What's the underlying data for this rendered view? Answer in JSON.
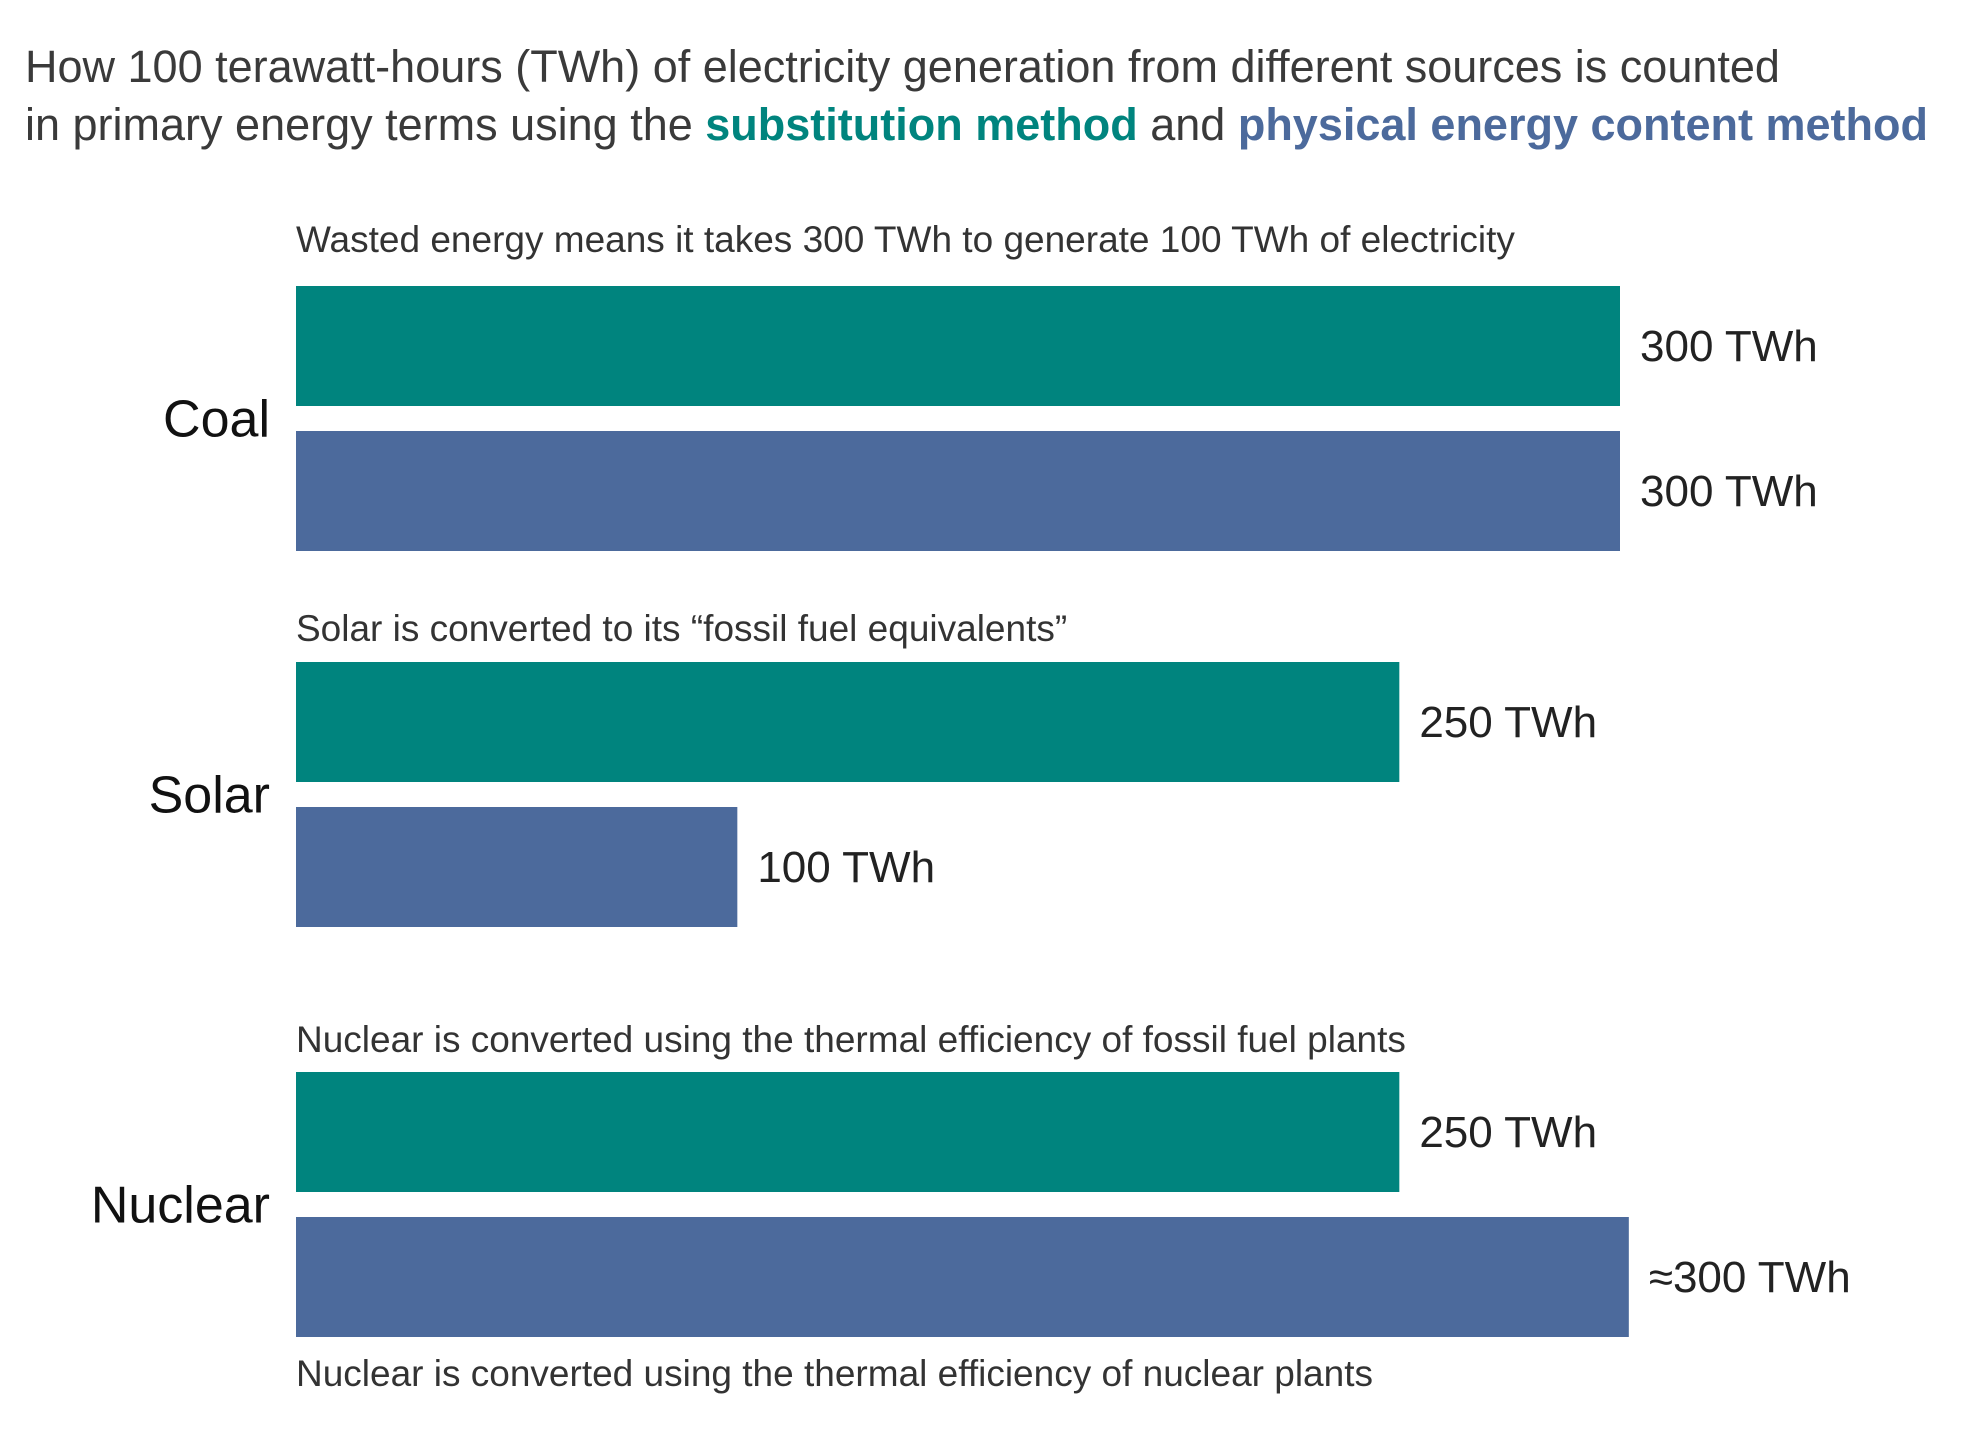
{
  "title": {
    "line1": "How 100 terawatt-hours (TWh) of electricity generation from different sources is counted",
    "line2_prefix": "in primary energy terms using the ",
    "method_substitution": "substitution method",
    "connector": " and ",
    "method_physical": "physical energy content method"
  },
  "colors": {
    "substitution": "#00847e",
    "physical": "#4c6a9c"
  },
  "chart_data": {
    "type": "bar",
    "orientation": "horizontal",
    "categories": [
      "Coal",
      "Solar",
      "Nuclear"
    ],
    "series": [
      {
        "name": "substitution method",
        "values": [
          300,
          250,
          250
        ],
        "labels": [
          "300 TWh",
          "250 TWh",
          "250 TWh"
        ]
      },
      {
        "name": "physical energy content method",
        "values": [
          300,
          100,
          302
        ],
        "labels": [
          "300 TWh",
          "100 TWh",
          "≈300 TWh"
        ]
      }
    ],
    "unit": "TWh",
    "xlim": [
      0,
      300
    ],
    "grid": false,
    "annotations": [
      "Wasted energy means it takes 300 TWh to generate 100 TWh of electricity",
      "Solar is converted to its “fossil fuel equivalents”",
      "Nuclear is converted using the thermal efficiency of fossil fuel plants",
      "Nuclear is converted using the thermal efficiency of nuclear plants"
    ]
  }
}
